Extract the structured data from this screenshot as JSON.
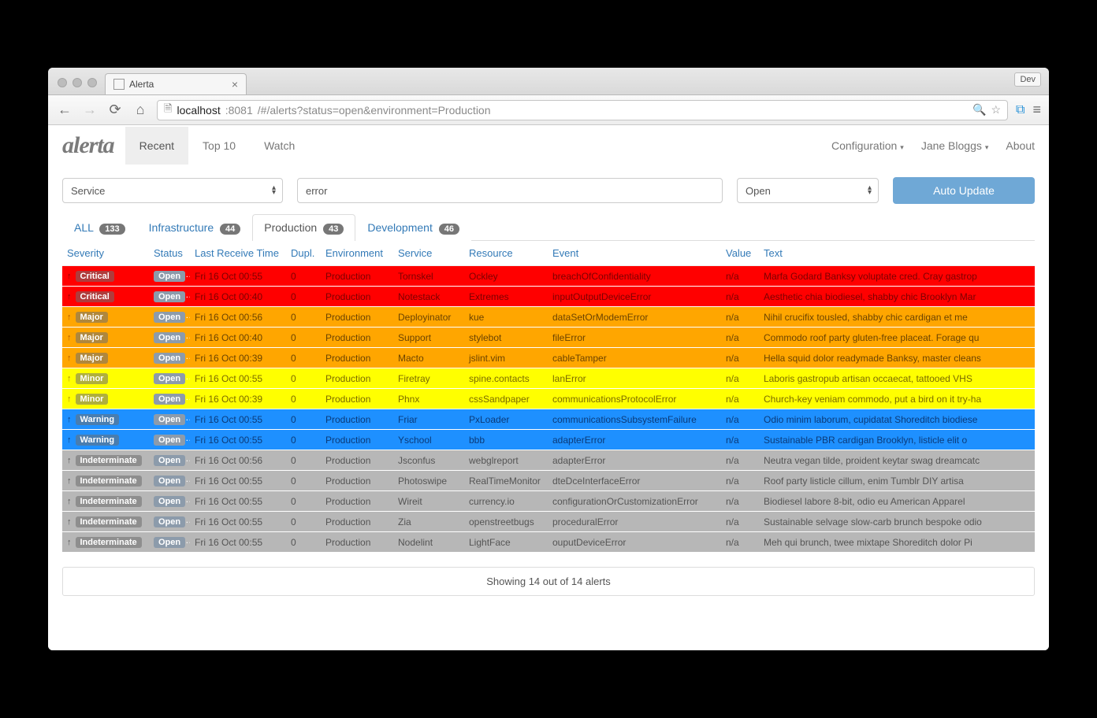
{
  "browser": {
    "tab_title": "Alerta",
    "dev_badge": "Dev",
    "url_host": "localhost",
    "url_port": ":8081",
    "url_path": "/#/alerts?status=open&environment=Production"
  },
  "navbar": {
    "brand": "alerta",
    "items": [
      {
        "label": "Recent",
        "active": true
      },
      {
        "label": "Top 10",
        "active": false
      },
      {
        "label": "Watch",
        "active": false
      }
    ],
    "right": {
      "config": "Configuration",
      "user": "Jane Bloggs",
      "about": "About"
    }
  },
  "filters": {
    "service_select": "Service",
    "search_value": "error",
    "status_select": "Open",
    "auto_update": "Auto Update"
  },
  "env_tabs": [
    {
      "label": "ALL",
      "count": "133",
      "active": false
    },
    {
      "label": "Infrastructure",
      "count": "44",
      "active": false
    },
    {
      "label": "Production",
      "count": "43",
      "active": true
    },
    {
      "label": "Development",
      "count": "46",
      "active": false
    }
  ],
  "columns": [
    "Severity",
    "Status",
    "Last Receive Time",
    "Dupl.",
    "Environment",
    "Service",
    "Resource",
    "Event",
    "Value",
    "Text"
  ],
  "column_widths": [
    "110px",
    "52px",
    "122px",
    "44px",
    "92px",
    "90px",
    "106px",
    "220px",
    "48px",
    "auto"
  ],
  "severity_colors": {
    "Critical": {
      "bg": "#ff0000",
      "fg": "#7c0000",
      "arrow": "#8b0000"
    },
    "Major": {
      "bg": "#ffa600",
      "fg": "#6b4300",
      "arrow": "#b25700"
    },
    "Minor": {
      "bg": "#ffff00",
      "fg": "#7a6a00",
      "arrow": "#a98900"
    },
    "Warning": {
      "bg": "#1e90ff",
      "fg": "#0b3a78",
      "arrow": "#0b3a78"
    },
    "Indeterminate": {
      "bg": "#b7b7b7",
      "fg": "#555555",
      "arrow": "#555555"
    }
  },
  "rows": [
    {
      "severity": "Critical",
      "status": "Open",
      "time": "Fri 16 Oct 00:55",
      "dupl": "0",
      "env": "Production",
      "service": "Tornskel",
      "resource": "Ockley",
      "event": "breachOfConfidentiality",
      "value": "n/a",
      "text": "Marfa Godard Banksy voluptate cred. Cray gastrop"
    },
    {
      "severity": "Critical",
      "status": "Open",
      "time": "Fri 16 Oct 00:40",
      "dupl": "0",
      "env": "Production",
      "service": "Notestack",
      "resource": "Extremes",
      "event": "inputOutputDeviceError",
      "value": "n/a",
      "text": "Aesthetic chia biodiesel, shabby chic Brooklyn Mar"
    },
    {
      "severity": "Major",
      "status": "Open",
      "time": "Fri 16 Oct 00:56",
      "dupl": "0",
      "env": "Production",
      "service": "Deployinator",
      "resource": "kue",
      "event": "dataSetOrModemError",
      "value": "n/a",
      "text": "Nihil crucifix tousled, shabby chic cardigan et me"
    },
    {
      "severity": "Major",
      "status": "Open",
      "time": "Fri 16 Oct 00:40",
      "dupl": "0",
      "env": "Production",
      "service": "Support",
      "resource": "stylebot",
      "event": "fileError",
      "value": "n/a",
      "text": "Commodo roof party gluten-free placeat. Forage qu"
    },
    {
      "severity": "Major",
      "status": "Open",
      "time": "Fri 16 Oct 00:39",
      "dupl": "0",
      "env": "Production",
      "service": "Macto",
      "resource": "jslint.vim",
      "event": "cableTamper",
      "value": "n/a",
      "text": "Hella squid dolor readymade Banksy, master cleans"
    },
    {
      "severity": "Minor",
      "status": "Open",
      "time": "Fri 16 Oct 00:55",
      "dupl": "0",
      "env": "Production",
      "service": "Firetray",
      "resource": "spine.contacts",
      "event": "lanError",
      "value": "n/a",
      "text": "Laboris gastropub artisan occaecat, tattooed VHS"
    },
    {
      "severity": "Minor",
      "status": "Open",
      "time": "Fri 16 Oct 00:39",
      "dupl": "0",
      "env": "Production",
      "service": "Phnx",
      "resource": "cssSandpaper",
      "event": "communicationsProtocolError",
      "value": "n/a",
      "text": "Church-key veniam commodo, put a bird on it try-ha"
    },
    {
      "severity": "Warning",
      "status": "Open",
      "time": "Fri 16 Oct 00:55",
      "dupl": "0",
      "env": "Production",
      "service": "Friar",
      "resource": "PxLoader",
      "event": "communicationsSubsystemFailure",
      "value": "n/a",
      "text": "Odio minim laborum, cupidatat Shoreditch biodiese"
    },
    {
      "severity": "Warning",
      "status": "Open",
      "time": "Fri 16 Oct 00:55",
      "dupl": "0",
      "env": "Production",
      "service": "Yschool",
      "resource": "bbb",
      "event": "adapterError",
      "value": "n/a",
      "text": "Sustainable PBR cardigan Brooklyn, listicle elit o"
    },
    {
      "severity": "Indeterminate",
      "status": "Open",
      "time": "Fri 16 Oct 00:56",
      "dupl": "0",
      "env": "Production",
      "service": "Jsconfus",
      "resource": "webglreport",
      "event": "adapterError",
      "value": "n/a",
      "text": "Neutra vegan tilde, proident keytar swag dreamcatc"
    },
    {
      "severity": "Indeterminate",
      "status": "Open",
      "time": "Fri 16 Oct 00:55",
      "dupl": "0",
      "env": "Production",
      "service": "Photoswipe",
      "resource": "RealTimeMonitor",
      "event": "dteDceInterfaceError",
      "value": "n/a",
      "text": "Roof party listicle cillum, enim Tumblr DIY artisa"
    },
    {
      "severity": "Indeterminate",
      "status": "Open",
      "time": "Fri 16 Oct 00:55",
      "dupl": "0",
      "env": "Production",
      "service": "Wireit",
      "resource": "currency.io",
      "event": "configurationOrCustomizationError",
      "value": "n/a",
      "text": "Biodiesel labore 8-bit, odio eu American Apparel"
    },
    {
      "severity": "Indeterminate",
      "status": "Open",
      "time": "Fri 16 Oct 00:55",
      "dupl": "0",
      "env": "Production",
      "service": "Zia",
      "resource": "openstreetbugs",
      "event": "proceduralError",
      "value": "n/a",
      "text": "Sustainable selvage slow-carb brunch bespoke odio"
    },
    {
      "severity": "Indeterminate",
      "status": "Open",
      "time": "Fri 16 Oct 00:55",
      "dupl": "0",
      "env": "Production",
      "service": "Nodelint",
      "resource": "LightFace",
      "event": "ouputDeviceError",
      "value": "n/a",
      "text": "Meh qui brunch, twee mixtape Shoreditch dolor Pi"
    }
  ],
  "footer": "Showing 14 out of 14 alerts"
}
